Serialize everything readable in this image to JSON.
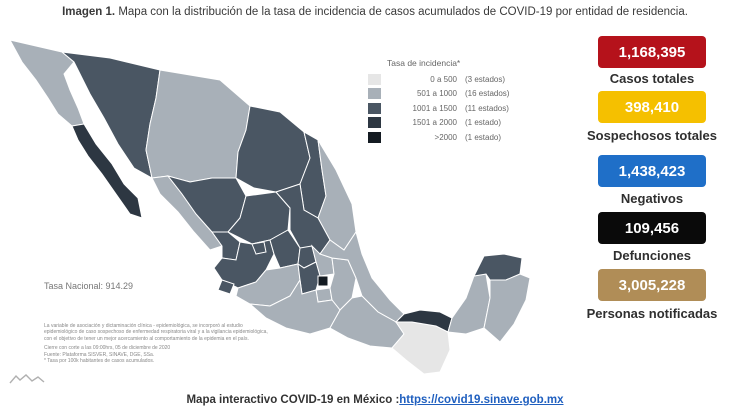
{
  "header": {
    "title_bold": "Imagen 1.",
    "title_text": "Mapa con la distribución de la tasa de incidencia de casos acumulados de COVID-19 por entidad de residencia."
  },
  "legend": {
    "title": "Tasa de incidencia*",
    "items": [
      {
        "range": "0 a 500",
        "count": "(3 estados)",
        "color": "#e6e6e6"
      },
      {
        "range": "501 a 1000",
        "count": "(16 estados)",
        "color": "#a8b0b8"
      },
      {
        "range": "1001 a 1500",
        "count": "(11 estados)",
        "color": "#4a5663"
      },
      {
        "range": "1501 a 2000",
        "count": "(1 estado)",
        "color": "#2d3742"
      },
      {
        "range": ">2000",
        "count": "(1 estado)",
        "color": "#141b22"
      }
    ]
  },
  "tasa_nacional": "Tasa Nacional: 914.29",
  "notes": [
    "La variable de asociación y dictaminación clínica - epidemiológica, se incorporó al estudio",
    "epidemiológico de caso sospechoso de enfermedad respiratoria viral y a la vigilancia epidemiológica,",
    "con el objetivo de tener un mejor acercamiento al comportamiento de la epidemia en el país.",
    "",
    "Cierre con corte a las 09:00hrs, 05 de diciembre de 2020",
    "Fuente: Plataforma SISVER, SINAVE, DGE, SSa.",
    "* Tasa por 100k habitantes de casos acumulados."
  ],
  "stats": [
    {
      "value": "1,168,395",
      "label": "Casos totales",
      "color": "#b5121b"
    },
    {
      "value": "398,410",
      "label": "Sospechosos totales",
      "color": "#f5c000"
    },
    {
      "value": "1,438,423",
      "label": "Negativos",
      "color": "#1f6fc8"
    },
    {
      "value": "109,456",
      "label": "Defunciones",
      "color": "#0a0a0a"
    },
    {
      "value": "3,005,228",
      "label": "Personas notificadas",
      "color": "#b08d57"
    }
  ],
  "footer": {
    "text": "Mapa interactivo COVID-19 en México :",
    "link": "https://covid19.sinave.gob.mx"
  }
}
